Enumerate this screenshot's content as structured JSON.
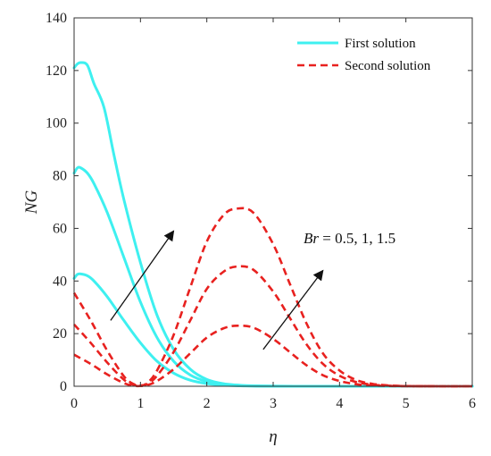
{
  "chart_data": {
    "type": "line",
    "xlabel": "η",
    "ylabel": "NG",
    "xlim": [
      0,
      6
    ],
    "ylim": [
      0,
      140
    ],
    "xticks": [
      0,
      1,
      2,
      3,
      4,
      5,
      6
    ],
    "yticks": [
      0,
      20,
      40,
      60,
      80,
      100,
      120,
      140
    ],
    "grid": false,
    "legend_position": "top-right",
    "legend": [
      {
        "label": "First solution",
        "style": "solid",
        "color": "#3ef0f0"
      },
      {
        "label": "Second solution",
        "style": "dashed",
        "color": "#e8211f"
      }
    ],
    "annotation": {
      "var": "Br",
      "text": " = 0.5, 1, 1.5"
    },
    "series": [
      {
        "group": "First solution",
        "Br": 0.5,
        "style": "solid",
        "color": "#3ef0f0",
        "x": [
          0,
          0.05,
          0.1,
          0.2,
          0.3,
          0.5,
          0.75,
          1.0,
          1.25,
          1.5,
          1.75,
          2.0,
          2.25,
          2.5,
          2.75,
          3.0,
          3.5,
          4.0,
          5.0,
          6.0
        ],
        "y": [
          41,
          42.5,
          42.7,
          42,
          40,
          34,
          25,
          16.5,
          9.5,
          5,
          2.3,
          1.0,
          0.4,
          0.15,
          0.05,
          0.02,
          0,
          0,
          0,
          0
        ]
      },
      {
        "group": "First solution",
        "Br": 1,
        "style": "solid",
        "color": "#3ef0f0",
        "x": [
          0,
          0.05,
          0.1,
          0.2,
          0.3,
          0.5,
          0.75,
          1.0,
          1.25,
          1.5,
          1.75,
          2.0,
          2.25,
          2.5,
          2.75,
          3.0,
          3.5,
          4.0,
          5.0,
          6.0
        ],
        "y": [
          81,
          83,
          83,
          81,
          77,
          66,
          49,
          32,
          18.5,
          9.5,
          4.3,
          1.8,
          0.7,
          0.25,
          0.08,
          0.03,
          0,
          0,
          0,
          0
        ]
      },
      {
        "group": "First solution",
        "Br": 1.5,
        "style": "solid",
        "color": "#3ef0f0",
        "x": [
          0,
          0.05,
          0.1,
          0.2,
          0.3,
          0.45,
          0.6,
          0.75,
          1.0,
          1.25,
          1.5,
          1.75,
          2.0,
          2.25,
          2.5,
          2.75,
          3.0,
          3.5,
          4.0,
          5.0,
          6.0
        ],
        "y": [
          121,
          122.5,
          123,
          122,
          115,
          106,
          88,
          71,
          47,
          27,
          14,
          6.5,
          2.6,
          1.0,
          0.4,
          0.15,
          0.05,
          0,
          0,
          0,
          0
        ]
      },
      {
        "group": "Second solution",
        "Br": 0.5,
        "style": "dashed",
        "color": "#e8211f",
        "x": [
          0,
          0.25,
          0.5,
          0.75,
          0.9,
          1.0,
          1.1,
          1.25,
          1.5,
          1.75,
          2.0,
          2.25,
          2.45,
          2.7,
          3.0,
          3.25,
          3.5,
          3.75,
          4.0,
          4.25,
          4.5,
          4.75,
          5.0,
          5.5,
          6.0
        ],
        "y": [
          12,
          8.5,
          4.5,
          1.2,
          0.2,
          0.1,
          0.4,
          2,
          6.5,
          12.5,
          18.5,
          22,
          23,
          22.3,
          18,
          13,
          8,
          4.2,
          2,
          0.8,
          0.3,
          0.1,
          0.03,
          0,
          0
        ]
      },
      {
        "group": "Second solution",
        "Br": 1,
        "style": "dashed",
        "color": "#e8211f",
        "x": [
          0,
          0.25,
          0.5,
          0.75,
          0.9,
          1.0,
          1.1,
          1.25,
          1.5,
          1.75,
          2.0,
          2.25,
          2.45,
          2.7,
          3.0,
          3.25,
          3.5,
          3.75,
          4.0,
          4.25,
          4.5,
          4.75,
          5.0,
          5.5,
          6.0
        ],
        "y": [
          23.5,
          16.5,
          9,
          2.5,
          0.5,
          0.2,
          0.8,
          4,
          13,
          25,
          37,
          43.5,
          45.5,
          44.3,
          36,
          26,
          16,
          8.5,
          4,
          1.6,
          0.6,
          0.2,
          0.05,
          0,
          0
        ]
      },
      {
        "group": "Second solution",
        "Br": 1.5,
        "style": "dashed",
        "color": "#e8211f",
        "x": [
          0,
          0.25,
          0.5,
          0.75,
          0.9,
          1.0,
          1.1,
          1.25,
          1.5,
          1.75,
          2.0,
          2.25,
          2.45,
          2.7,
          3.0,
          3.25,
          3.5,
          3.75,
          4.0,
          4.25,
          4.5,
          4.75,
          5.0,
          5.5,
          6.0
        ],
        "y": [
          35.5,
          25,
          13.5,
          3.8,
          0.8,
          0.3,
          1.2,
          6,
          19.5,
          37.5,
          55,
          65,
          67.5,
          66,
          54,
          39,
          24,
          12.5,
          6,
          2.4,
          0.9,
          0.3,
          0.08,
          0,
          0
        ]
      }
    ],
    "arrows": [
      {
        "from": [
          0.55,
          25
        ],
        "to": [
          1.5,
          59
        ]
      },
      {
        "from": [
          2.85,
          14
        ],
        "to": [
          3.75,
          44
        ]
      }
    ]
  }
}
